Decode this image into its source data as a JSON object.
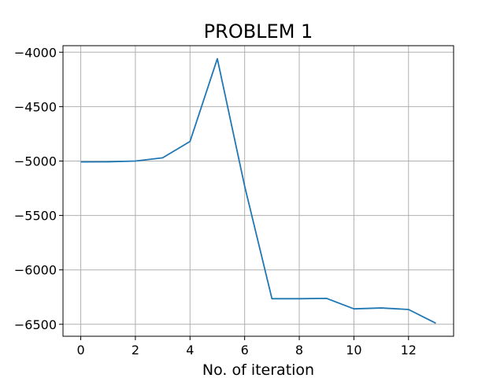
{
  "chart_data": {
    "type": "line",
    "title": "PROBLEM 1",
    "xlabel": "No. of iteration",
    "ylabel": "",
    "xlim": [
      -0.65,
      13.65
    ],
    "ylim": [
      -6610,
      -3940
    ],
    "xticks": [
      0,
      2,
      4,
      6,
      8,
      10,
      12
    ],
    "yticks": [
      -4000,
      -4500,
      -5000,
      -5500,
      -6000,
      -6500
    ],
    "xtick_labels": [
      "0",
      "2",
      "4",
      "6",
      "8",
      "10",
      "12"
    ],
    "ytick_labels": [
      "−4000",
      "−4500",
      "−5000",
      "−5500",
      "−6000",
      "−6500"
    ],
    "grid": true,
    "series": [
      {
        "color": "#1f77b4",
        "x": [
          0,
          1,
          2,
          3,
          4,
          5,
          6,
          7,
          8,
          9,
          10,
          11,
          12,
          13
        ],
        "y": [
          -5008,
          -5007,
          -5000,
          -4970,
          -4820,
          -4060,
          -5230,
          -6265,
          -6265,
          -6262,
          -6358,
          -6350,
          -6364,
          -6490
        ]
      }
    ]
  }
}
